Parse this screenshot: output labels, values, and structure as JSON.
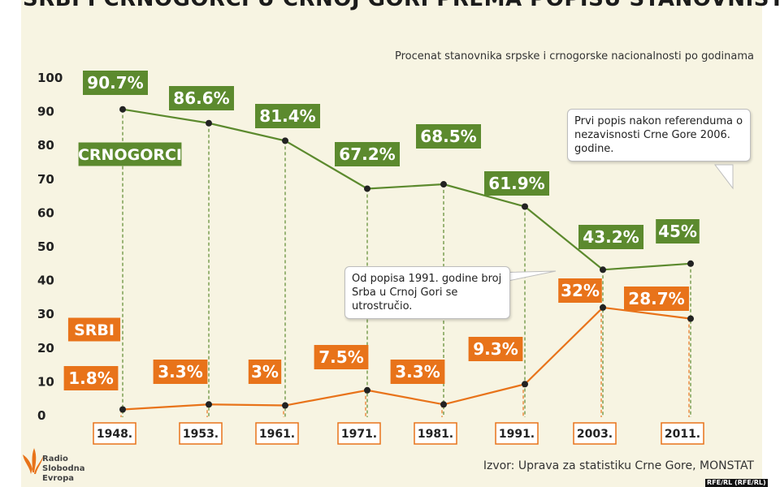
{
  "title": "SRBI I CRNOGORCI U CRNOJ GORI PREMA POPISU STANOVNIŠTVA",
  "subtitle": "Procenat stanovnika srpske i crnogorske nacionalnosti po godinama",
  "source": "Izvor: Uprava za statistiku Crne Gore, MONSTAT",
  "logo": {
    "line1": "Radio Slobodna",
    "line2": "Evropa"
  },
  "credit": "RFE/RL (RFE/RL)",
  "callouts": {
    "referendum": "Prvi popis nakon referenduma o nezavisnosti Crne Gore 2006. godine.",
    "serbs_growth": "Od popisa 1991. godine broj Srba u Crnoj Gori se utrostručio."
  },
  "colors": {
    "crnogorci": "#5c8a2e",
    "srbi": "#e8731a",
    "background": "#f7f4e2"
  },
  "chart_data": {
    "type": "line",
    "categories": [
      "1948.",
      "1953.",
      "1961.",
      "1971.",
      "1981.",
      "1991.",
      "2003.",
      "2011."
    ],
    "ylim": [
      0,
      100
    ],
    "yticks": [
      "0",
      "10",
      "20",
      "30",
      "40",
      "50",
      "60",
      "70",
      "80",
      "90",
      "100"
    ],
    "grid": false,
    "series": [
      {
        "name": "CRNOGORCI",
        "values": [
          90.7,
          86.6,
          81.4,
          67.2,
          68.5,
          61.9,
          43.2,
          45
        ],
        "labels": [
          "90.7%",
          "86.6%",
          "81.4%",
          "67.2%",
          "68.5%",
          "61.9%",
          "43.2%",
          "45%"
        ]
      },
      {
        "name": "SRBI",
        "values": [
          1.8,
          3.3,
          3,
          7.5,
          3.3,
          9.3,
          32,
          28.7
        ],
        "labels": [
          "1.8%",
          "3.3%",
          "3%",
          "7.5%",
          "3.3%",
          "9.3%",
          "32%",
          "28.7%"
        ]
      }
    ]
  }
}
